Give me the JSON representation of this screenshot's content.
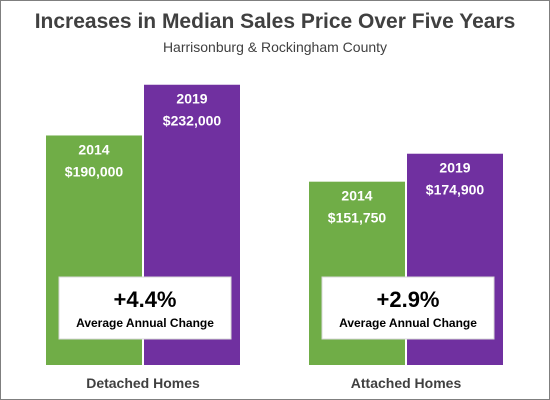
{
  "colors": {
    "series_2014": "#70ad47",
    "series_2019": "#7030a0",
    "callout_bg": "#ffffff"
  },
  "chart_data": {
    "type": "bar",
    "title": "Increases in Median Sales Price Over Five Years",
    "subtitle": "Harrisonburg & Rockingham County",
    "categories": [
      "Detached Homes",
      "Attached Homes"
    ],
    "series": [
      {
        "name": "2014",
        "values": [
          190000,
          151750
        ],
        "labels": [
          "$190,000",
          "$151,750"
        ]
      },
      {
        "name": "2019",
        "values": [
          232000,
          174900
        ],
        "labels": [
          "$232,000",
          "$174,900"
        ]
      }
    ],
    "ylim": [
      0,
      250000
    ],
    "grid": false,
    "annotations": [
      {
        "value": "+4.4%",
        "label": "Average Annual Change"
      },
      {
        "value": "+2.9%",
        "label": "Average Annual Change"
      }
    ]
  }
}
